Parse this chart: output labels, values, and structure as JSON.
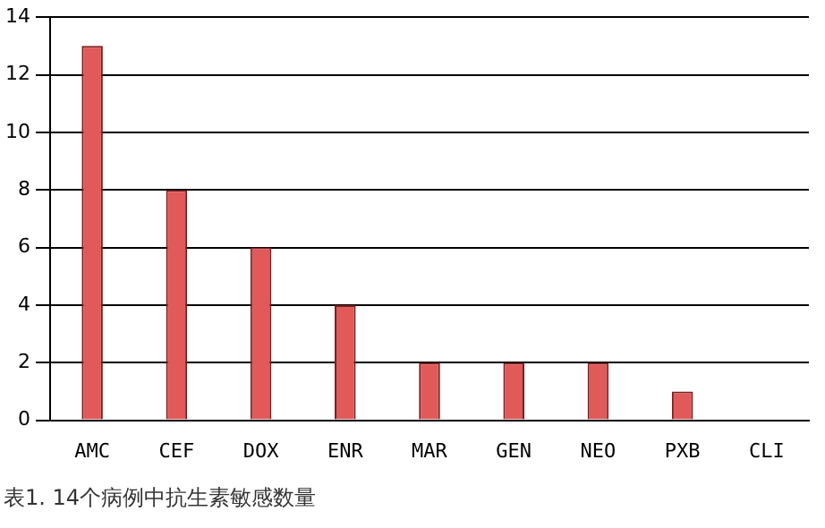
{
  "chart_data": {
    "type": "bar",
    "categories": [
      "AMC",
      "CEF",
      "DOX",
      "ENR",
      "MAR",
      "GEN",
      "NEO",
      "PXB",
      "CLI"
    ],
    "values": [
      13,
      8,
      6,
      4,
      2,
      2,
      2,
      1,
      0
    ],
    "color": "#e05a5a",
    "ylim": [
      0,
      14
    ],
    "yticks": [
      0,
      2,
      4,
      6,
      8,
      10,
      12,
      14
    ],
    "grid": "y",
    "legend": false,
    "annotations": [
      "表1. 14个病例中抗生素敏感数量"
    ]
  }
}
